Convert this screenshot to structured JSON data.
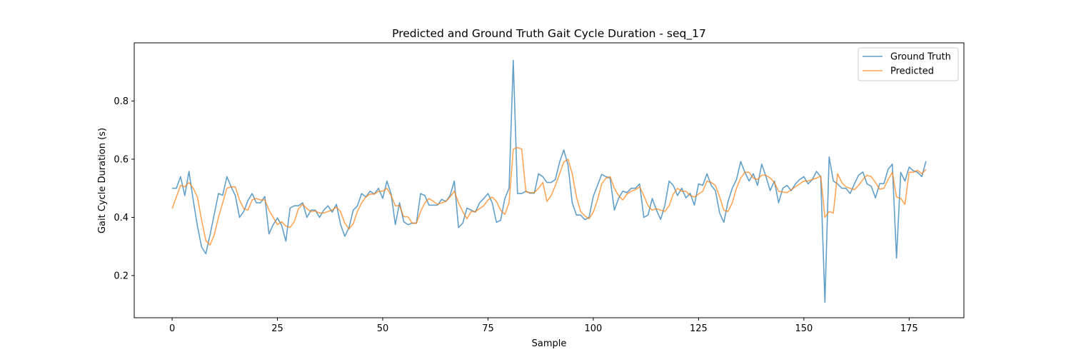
{
  "chart_data": {
    "type": "line",
    "title": "Predicted and Ground Truth Gait Cycle Duration - seq_17",
    "xlabel": "Sample",
    "ylabel": "Gait Cycle Duration (s)",
    "xlim": [
      -9,
      188
    ],
    "ylim": [
      0.055,
      1.0
    ],
    "x_ticks": [
      0,
      25,
      50,
      75,
      100,
      125,
      150,
      175
    ],
    "y_ticks": [
      0.2,
      0.4,
      0.6,
      0.8
    ],
    "y_tick_labels": [
      "0.2",
      "0.4",
      "0.6",
      "0.8"
    ],
    "grid": false,
    "legend_position": "top-right",
    "x": [
      0,
      1,
      2,
      3,
      4,
      5,
      6,
      7,
      8,
      9,
      10,
      11,
      12,
      13,
      14,
      15,
      16,
      17,
      18,
      19,
      20,
      21,
      22,
      23,
      24,
      25,
      26,
      27,
      28,
      29,
      30,
      31,
      32,
      33,
      34,
      35,
      36,
      37,
      38,
      39,
      40,
      41,
      42,
      43,
      44,
      45,
      46,
      47,
      48,
      49,
      50,
      51,
      52,
      53,
      54,
      55,
      56,
      57,
      58,
      59,
      60,
      61,
      62,
      63,
      64,
      65,
      66,
      67,
      68,
      69,
      70,
      71,
      72,
      73,
      74,
      75,
      76,
      77,
      78,
      79,
      80,
      81,
      82,
      83,
      84,
      85,
      86,
      87,
      88,
      89,
      90,
      91,
      92,
      93,
      94,
      95,
      96,
      97,
      98,
      99,
      100,
      101,
      102,
      103,
      104,
      105,
      106,
      107,
      108,
      109,
      110,
      111,
      112,
      113,
      114,
      115,
      116,
      117,
      118,
      119,
      120,
      121,
      122,
      123,
      124,
      125,
      126,
      127,
      128,
      129,
      130,
      131,
      132,
      133,
      134,
      135,
      136,
      137,
      138,
      139,
      140,
      141,
      142,
      143,
      144,
      145,
      146,
      147,
      148,
      149,
      150,
      151,
      152,
      153,
      154,
      155,
      156,
      157,
      158,
      159,
      160,
      161,
      162,
      163,
      164,
      165,
      166,
      167,
      168,
      169,
      170,
      171,
      172,
      173,
      174,
      175,
      176,
      177,
      178,
      179
    ],
    "series": [
      {
        "name": "Ground Truth",
        "color": "#1f77b4",
        "values": [
          0.5,
          0.5,
          0.54,
          0.475,
          0.558,
          0.46,
          0.37,
          0.298,
          0.275,
          0.34,
          0.41,
          0.482,
          0.476,
          0.54,
          0.505,
          0.475,
          0.4,
          0.42,
          0.458,
          0.482,
          0.45,
          0.45,
          0.472,
          0.343,
          0.375,
          0.398,
          0.373,
          0.318,
          0.432,
          0.44,
          0.44,
          0.45,
          0.4,
          0.425,
          0.425,
          0.4,
          0.425,
          0.44,
          0.418,
          0.445,
          0.375,
          0.335,
          0.365,
          0.425,
          0.44,
          0.482,
          0.47,
          0.49,
          0.48,
          0.5,
          0.465,
          0.525,
          0.48,
          0.375,
          0.45,
          0.385,
          0.375,
          0.38,
          0.38,
          0.482,
          0.475,
          0.442,
          0.442,
          0.442,
          0.462,
          0.455,
          0.475,
          0.525,
          0.365,
          0.38,
          0.432,
          0.425,
          0.418,
          0.45,
          0.465,
          0.482,
          0.45,
          0.383,
          0.39,
          0.465,
          0.5,
          0.94,
          0.482,
          0.482,
          0.49,
          0.483,
          0.483,
          0.55,
          0.54,
          0.52,
          0.52,
          0.53,
          0.59,
          0.632,
          0.58,
          0.45,
          0.408,
          0.408,
          0.392,
          0.4,
          0.472,
          0.51,
          0.548,
          0.54,
          0.535,
          0.425,
          0.465,
          0.49,
          0.485,
          0.5,
          0.5,
          0.515,
          0.4,
          0.408,
          0.465,
          0.425,
          0.393,
          0.442,
          0.525,
          0.51,
          0.475,
          0.5,
          0.467,
          0.483,
          0.442,
          0.515,
          0.51,
          0.55,
          0.51,
          0.492,
          0.415,
          0.383,
          0.455,
          0.5,
          0.53,
          0.592,
          0.555,
          0.525,
          0.55,
          0.51,
          0.583,
          0.54,
          0.492,
          0.525,
          0.45,
          0.5,
          0.51,
          0.492,
          0.515,
          0.53,
          0.54,
          0.515,
          0.53,
          0.558,
          0.54,
          0.108,
          0.608,
          0.525,
          0.515,
          0.5,
          0.5,
          0.482,
          0.515,
          0.545,
          0.556,
          0.515,
          0.507,
          0.467,
          0.516,
          0.516,
          0.565,
          0.583,
          0.26,
          0.555,
          0.525,
          0.573,
          0.56,
          0.555,
          0.54,
          0.593
        ]
      },
      {
        "name": "Predicted",
        "color": "#ff7f0e",
        "values": [
          0.43,
          0.47,
          0.51,
          0.505,
          0.52,
          0.5,
          0.47,
          0.39,
          0.32,
          0.305,
          0.34,
          0.4,
          0.45,
          0.5,
          0.505,
          0.505,
          0.46,
          0.43,
          0.425,
          0.46,
          0.465,
          0.46,
          0.46,
          0.425,
          0.4,
          0.375,
          0.385,
          0.37,
          0.365,
          0.385,
          0.43,
          0.445,
          0.43,
          0.42,
          0.422,
          0.415,
          0.415,
          0.42,
          0.425,
          0.435,
          0.42,
          0.38,
          0.36,
          0.378,
          0.42,
          0.45,
          0.47,
          0.48,
          0.48,
          0.49,
          0.49,
          0.5,
          0.475,
          0.44,
          0.44,
          0.402,
          0.402,
          0.38,
          0.38,
          0.42,
          0.45,
          0.465,
          0.455,
          0.445,
          0.45,
          0.455,
          0.47,
          0.49,
          0.45,
          0.42,
          0.395,
          0.42,
          0.42,
          0.43,
          0.44,
          0.46,
          0.47,
          0.455,
          0.425,
          0.41,
          0.45,
          0.635,
          0.64,
          0.635,
          0.488,
          0.485,
          0.485,
          0.5,
          0.52,
          0.455,
          0.475,
          0.51,
          0.55,
          0.59,
          0.6,
          0.55,
          0.47,
          0.42,
          0.405,
          0.395,
          0.418,
          0.46,
          0.515,
          0.535,
          0.54,
          0.5,
          0.475,
          0.46,
          0.48,
          0.49,
          0.495,
          0.505,
          0.475,
          0.44,
          0.425,
          0.43,
          0.425,
          0.42,
          0.44,
          0.48,
          0.5,
          0.49,
          0.49,
          0.475,
          0.47,
          0.48,
          0.49,
          0.525,
          0.52,
          0.51,
          0.47,
          0.425,
          0.42,
          0.45,
          0.5,
          0.535,
          0.555,
          0.555,
          0.535,
          0.53,
          0.545,
          0.545,
          0.535,
          0.52,
          0.49,
          0.487,
          0.485,
          0.495,
          0.505,
          0.515,
          0.525,
          0.525,
          0.53,
          0.535,
          0.542,
          0.4,
          0.42,
          0.415,
          0.55,
          0.52,
          0.505,
          0.5,
          0.495,
          0.51,
          0.53,
          0.545,
          0.54,
          0.52,
          0.497,
          0.5,
          0.53,
          0.555,
          0.47,
          0.465,
          0.445,
          0.555,
          0.555,
          0.562,
          0.55,
          0.565
        ]
      }
    ]
  }
}
